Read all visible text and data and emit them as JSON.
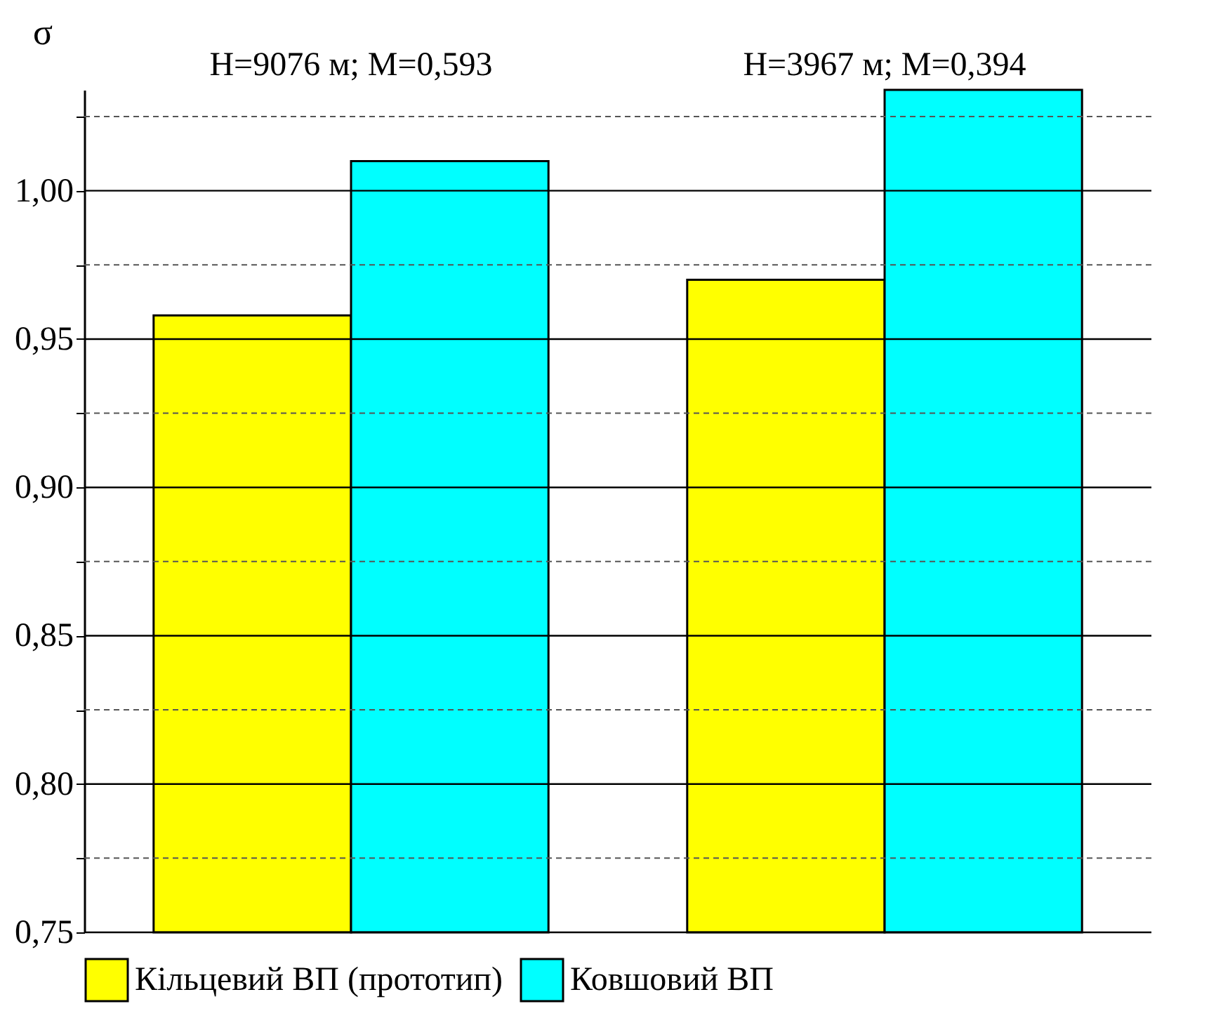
{
  "chart_data": {
    "type": "bar",
    "ylabel": "σ",
    "categories": [
      "H=9076 м; M=0,593",
      "H=3967 м; M=0,394"
    ],
    "series": [
      {
        "name": "Кільцевий ВП (прототип)",
        "color": "#ffff00",
        "values": [
          0.958,
          0.97
        ]
      },
      {
        "name": "Ковшовий ВП",
        "color": "#00ffff",
        "values": [
          1.01,
          1.034
        ]
      }
    ],
    "ylim": [
      0.75,
      1.034
    ],
    "yticks": [
      {
        "value": 0.75,
        "label": "0,75"
      },
      {
        "value": 0.775,
        "label": null
      },
      {
        "value": 0.8,
        "label": "0,80"
      },
      {
        "value": 0.825,
        "label": null
      },
      {
        "value": 0.85,
        "label": "0,85"
      },
      {
        "value": 0.875,
        "label": null
      },
      {
        "value": 0.9,
        "label": "0,90"
      },
      {
        "value": 0.925,
        "label": null
      },
      {
        "value": 0.95,
        "label": "0,95"
      },
      {
        "value": 0.975,
        "label": null
      },
      {
        "value": 1.0,
        "label": "1,00"
      },
      {
        "value": 1.025,
        "label": null
      }
    ],
    "grid": true,
    "legend": "bottom"
  }
}
